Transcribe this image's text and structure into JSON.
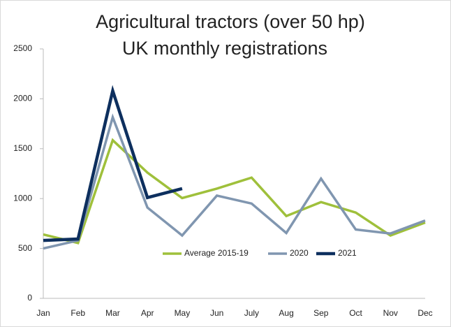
{
  "chart_data": {
    "type": "line",
    "title": [
      "Agricultural tractors (over 50 hp)",
      "UK monthly registrations"
    ],
    "categories": [
      "Jan",
      "Feb",
      "Mar",
      "Apr",
      "May",
      "Jun",
      "July",
      "Aug",
      "Sep",
      "Oct",
      "Nov",
      "Dec"
    ],
    "series": [
      {
        "name": "Average 2015-19",
        "color": "#9fc03b",
        "values": [
          640,
          555,
          1585,
          1260,
          1005,
          1100,
          1210,
          825,
          965,
          860,
          630,
          760
        ]
      },
      {
        "name": "2020",
        "color": "#8096b0",
        "values": [
          500,
          580,
          1815,
          910,
          630,
          1030,
          950,
          655,
          1200,
          690,
          650,
          780
        ]
      },
      {
        "name": "2021",
        "color": "#0d2f5e",
        "values": [
          580,
          595,
          2080,
          1010,
          1100,
          null,
          null,
          null,
          null,
          null,
          null,
          null
        ]
      }
    ],
    "ylim": [
      0,
      2500
    ],
    "yticks": [
      0,
      500,
      1000,
      1500,
      2000,
      2500
    ],
    "grid": false
  }
}
